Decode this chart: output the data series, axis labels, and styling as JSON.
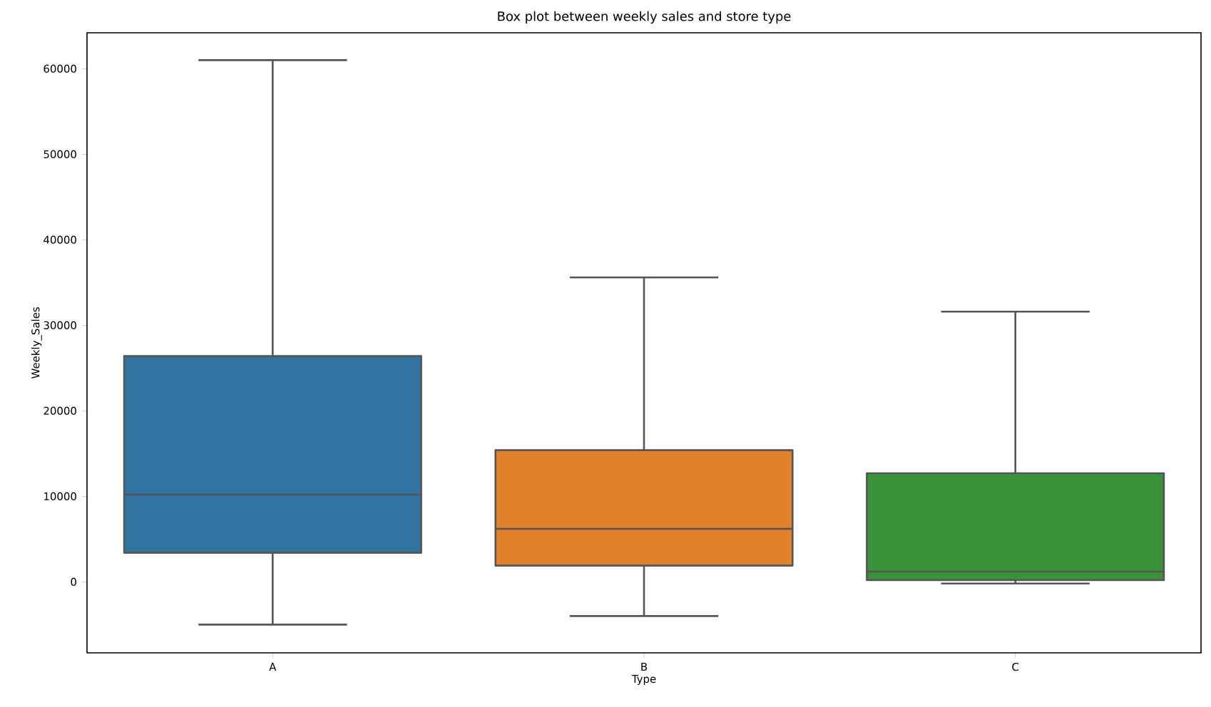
{
  "chart_data": {
    "type": "box",
    "title": "Box plot between weekly sales and store type",
    "xlabel": "Type",
    "ylabel": "Weekly_Sales",
    "categories": [
      "A",
      "B",
      "C"
    ],
    "boxes": [
      {
        "low": -5000,
        "q1": 3400,
        "median": 10200,
        "q3": 26400,
        "high": 61000
      },
      {
        "low": -4000,
        "q1": 1900,
        "median": 6200,
        "q3": 15400,
        "high": 35600
      },
      {
        "low": -200,
        "q1": 200,
        "median": 1200,
        "q3": 12700,
        "high": 31600
      }
    ],
    "colors": [
      "#3274a1",
      "#e1812c",
      "#3a923a"
    ],
    "ylim": [
      -8300,
      64200
    ],
    "yticks": [
      0,
      10000,
      20000,
      30000,
      40000,
      50000,
      60000
    ]
  }
}
